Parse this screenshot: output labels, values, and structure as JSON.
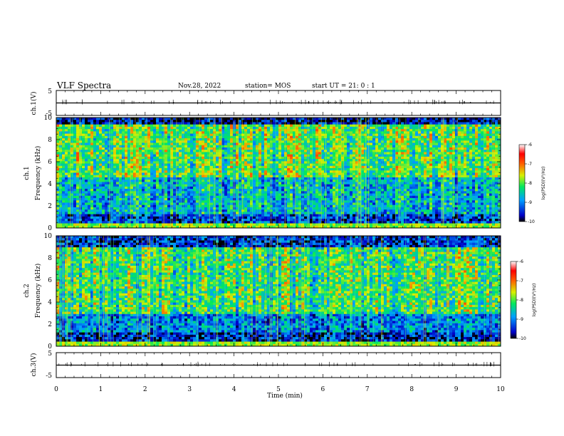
{
  "header": {
    "title": "VLF Spectra",
    "date": "Nov.28, 2022",
    "station": "station= MOS",
    "start": "start  UT =   21: 0  : 1"
  },
  "chart_data": {
    "type": "heatmap",
    "title": "VLF Spectra",
    "xlabel": "Time  (min)",
    "xlim": [
      0,
      10
    ],
    "x_ticks": [
      "0",
      "1",
      "2",
      "3",
      "4",
      "5",
      "6",
      "7",
      "8",
      "9",
      "10"
    ],
    "waveform_panels": [
      {
        "ylabel": "ch.1(V)",
        "ylim": [
          -5,
          5
        ],
        "y_ticks": [
          "5",
          "-5"
        ]
      },
      {
        "ylabel": "ch.3(V)",
        "ylim": [
          -5,
          5
        ],
        "y_ticks": [
          "5",
          "-5"
        ]
      }
    ],
    "spectrogram_panels": [
      {
        "ylabel_top": "ch.1",
        "ylabel": "Frequency  (kHz)",
        "ylim": [
          0,
          10
        ],
        "y_ticks": [
          "0",
          "2",
          "4",
          "6",
          "8",
          "10"
        ]
      },
      {
        "ylabel_top": "ch.2",
        "ylabel": "Frequency  (kHz)",
        "ylim": [
          0,
          10
        ],
        "y_ticks": [
          "0",
          "2",
          "4",
          "6",
          "8",
          "10"
        ]
      }
    ],
    "colorbar": {
      "label": "log(PSD)(V²/Hz)",
      "range": [
        -10,
        -6
      ],
      "ticks": [
        "-6",
        "-7",
        "-8",
        "-9",
        "-10"
      ]
    }
  }
}
